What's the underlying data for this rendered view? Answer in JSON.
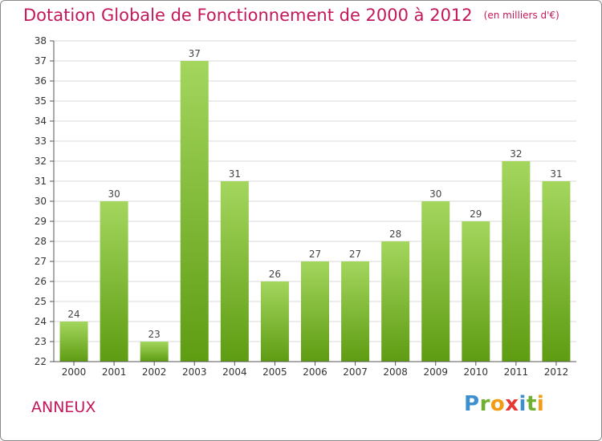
{
  "chart_data": {
    "type": "bar",
    "title": "Dotation Globale de Fonctionnement de 2000 à 2012",
    "subtitle": "(en milliers d'€)",
    "categories": [
      "2000",
      "2001",
      "2002",
      "2003",
      "2004",
      "2005",
      "2006",
      "2007",
      "2008",
      "2009",
      "2010",
      "2011",
      "2012"
    ],
    "values": [
      24,
      30,
      23,
      37,
      31,
      26,
      27,
      27,
      28,
      30,
      29,
      32,
      31
    ],
    "ylim": [
      22,
      38
    ],
    "yticks": [
      22,
      23,
      24,
      25,
      26,
      27,
      28,
      29,
      30,
      31,
      32,
      33,
      34,
      35,
      36,
      37,
      38
    ],
    "grid": true,
    "colors": {
      "bar_top": "#a4d65e",
      "bar_bottom": "#5e9c12",
      "title": "#c2185b",
      "grid": "#d8d8d8",
      "axis": "#555555"
    }
  },
  "commune": "ANNEUX",
  "logo": {
    "text": "Proxiti",
    "letters": [
      {
        "ch": "P",
        "color": "#3d8fd0"
      },
      {
        "ch": "r",
        "color": "#6fb030"
      },
      {
        "ch": "o",
        "color": "#f39c12"
      },
      {
        "ch": "x",
        "color": "#e53935"
      },
      {
        "ch": "i",
        "color": "#3d8fd0"
      },
      {
        "ch": "t",
        "color": "#6fb030"
      },
      {
        "ch": "i",
        "color": "#f39c12"
      }
    ]
  }
}
